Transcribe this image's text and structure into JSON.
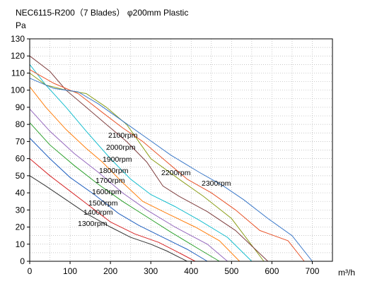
{
  "chart_data": {
    "type": "line",
    "title": "NEC6115-R200（7 Blades） φ200mm Plastic",
    "ylabel": "Pa",
    "xlabel": "m³/h",
    "xlim": [
      0,
      750
    ],
    "ylim": [
      0,
      130
    ],
    "xticks": [
      0,
      100,
      200,
      300,
      400,
      500,
      600,
      700
    ],
    "yticks": [
      0,
      10,
      20,
      30,
      40,
      50,
      60,
      70,
      80,
      90,
      100,
      110,
      120,
      130
    ],
    "grid": true,
    "series": [
      {
        "name": "1300rpm",
        "color": "#333333",
        "x": [
          0,
          40,
          90,
          140,
          200,
          250,
          300,
          340,
          390
        ],
        "y": [
          50,
          44,
          36,
          28,
          20,
          14,
          10,
          6,
          0
        ]
      },
      {
        "name": "1400rpm",
        "color": "#d62728",
        "x": [
          0,
          50,
          100,
          150,
          200,
          260,
          320,
          370,
          410
        ],
        "y": [
          60,
          50,
          41,
          32,
          23,
          16,
          11,
          5,
          0
        ]
      },
      {
        "name": "1500rpm",
        "color": "#1f5fbf",
        "x": [
          0,
          50,
          100,
          160,
          220,
          270,
          330,
          390,
          440
        ],
        "y": [
          72,
          60,
          49,
          39,
          28,
          21,
          14,
          7,
          0
        ]
      },
      {
        "name": "1600rpm",
        "color": "#2ca02c",
        "x": [
          0,
          50,
          110,
          170,
          230,
          290,
          350,
          420,
          470
        ],
        "y": [
          81,
          68,
          56,
          45,
          35,
          26,
          17,
          7,
          0
        ]
      },
      {
        "name": "1700rpm",
        "color": "#9467bd",
        "x": [
          0,
          50,
          110,
          170,
          230,
          290,
          360,
          440,
          490
        ],
        "y": [
          89,
          76,
          63,
          52,
          40,
          30,
          20,
          10,
          0
        ]
      },
      {
        "name": "1800rpm",
        "color": "#ff7f0e",
        "x": [
          0,
          40,
          90,
          140,
          180,
          230,
          280,
          340,
          410,
          470,
          520
        ],
        "y": [
          102,
          90,
          77,
          66,
          58,
          46,
          35,
          28,
          20,
          12,
          0
        ]
      },
      {
        "name": "1900rpm",
        "color": "#17becf",
        "x": [
          0,
          40,
          90,
          140,
          200,
          250,
          300,
          360,
          420,
          490,
          550
        ],
        "y": [
          115,
          103,
          90,
          76,
          60,
          48,
          39,
          32,
          24,
          14,
          0
        ]
      },
      {
        "name": "2000rpm",
        "color": "#8b9e1a",
        "x": [
          0,
          40,
          90,
          140,
          190,
          240,
          300,
          370,
          430,
          500,
          580
        ],
        "y": [
          110,
          103,
          100,
          98,
          90,
          80,
          60,
          48,
          38,
          25,
          0
        ]
      },
      {
        "name": "2100rpm",
        "color": "#7f3f3f",
        "x": [
          0,
          50,
          90,
          140,
          190,
          240,
          290,
          330,
          370,
          440,
          510,
          590
        ],
        "y": [
          120,
          111,
          100,
          90,
          80,
          70,
          58,
          44,
          38,
          29,
          18,
          0
        ]
      },
      {
        "name": "2200rpm",
        "color": "#e8542a",
        "x": [
          0,
          60,
          120,
          180,
          230,
          280,
          330,
          390,
          450,
          510,
          570,
          640,
          680
        ],
        "y": [
          112,
          104,
          98,
          87,
          78,
          70,
          60,
          48,
          40,
          30,
          18,
          12,
          0
        ]
      },
      {
        "name": "2300rpm",
        "color": "#3a78c8",
        "x": [
          0,
          60,
          120,
          170,
          230,
          290,
          350,
          420,
          480,
          530,
          590,
          650,
          700
        ],
        "y": [
          107,
          101,
          99,
          92,
          82,
          72,
          62,
          52,
          44,
          36,
          25,
          15,
          0
        ]
      }
    ],
    "labels": [
      "1300rpm",
      "1400rpm",
      "1500rpm",
      "1600rpm",
      "1700rpm",
      "1800rpm",
      "1900rpm",
      "2000rpm",
      "2100rpm",
      "2200rpm",
      "2300rpm"
    ]
  }
}
